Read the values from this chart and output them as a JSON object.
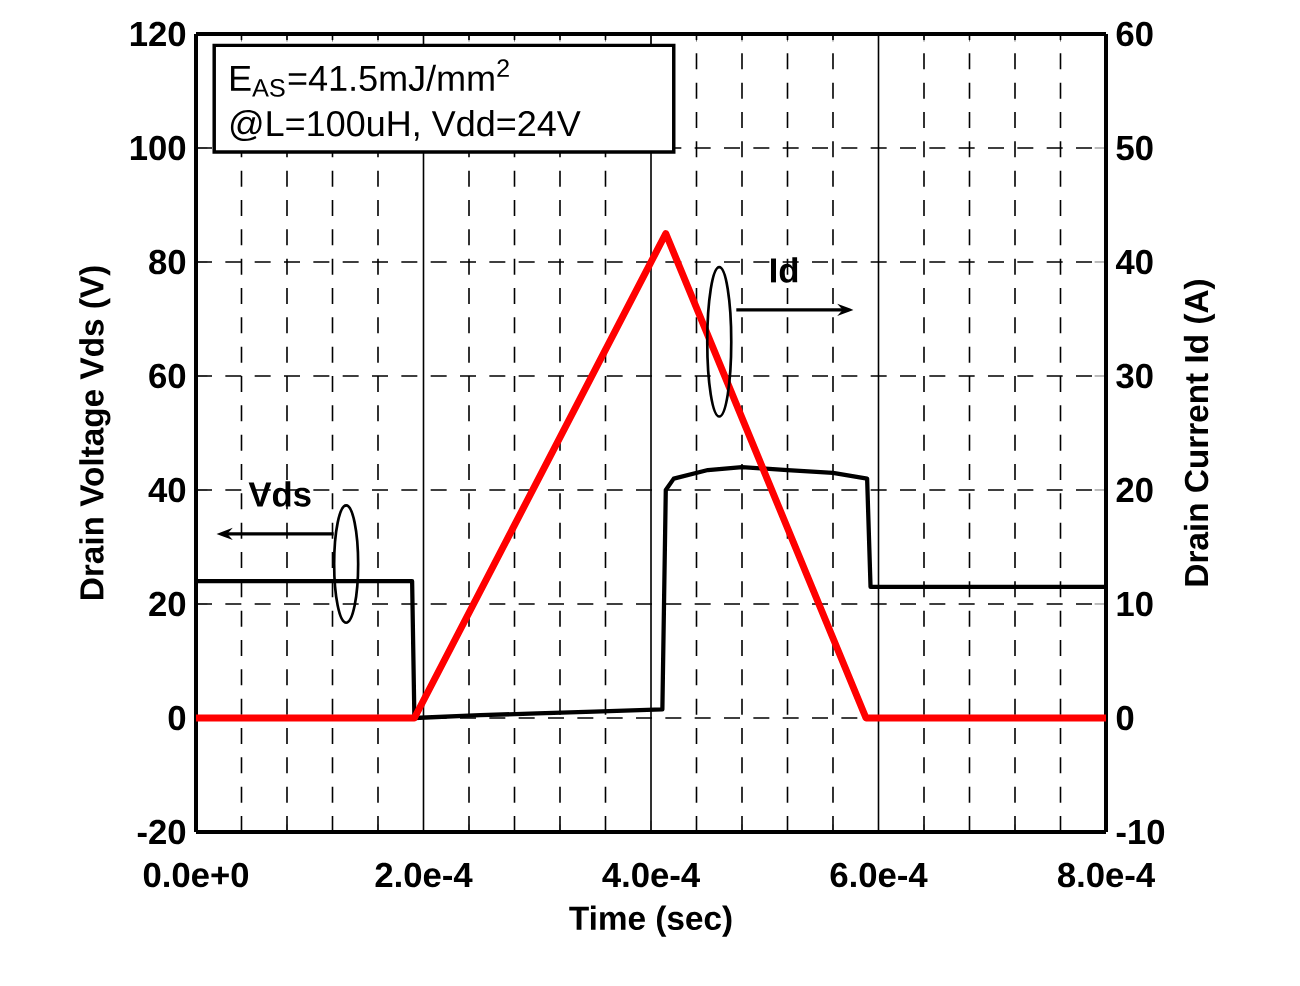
{
  "chart_data": {
    "type": "line",
    "xlabel": "Time (sec)",
    "ylabel": "Drain Voltage Vds (V)",
    "y2label": "Drain Current Id (A)",
    "xlim": [
      0,
      0.0008
    ],
    "xticks": [
      {
        "value": 0,
        "label": "0.0e+0"
      },
      {
        "value": 0.0002,
        "label": "2.0e-4"
      },
      {
        "value": 0.0004,
        "label": "4.0e-4"
      },
      {
        "value": 0.0006,
        "label": "6.0e-4"
      },
      {
        "value": 0.0008,
        "label": "8.0e-4"
      }
    ],
    "ylim": [
      -20,
      120
    ],
    "yticks": [
      -20,
      0,
      20,
      40,
      60,
      80,
      100,
      120
    ],
    "y2lim": [
      -10,
      60
    ],
    "y2ticks": [
      -10,
      0,
      10,
      20,
      30,
      40,
      50,
      60
    ],
    "grid": true,
    "series": [
      {
        "color": "#000000",
        "x": [
          0,
          5e-05,
          0.0001,
          0.00015,
          0.00019,
          0.000192,
          0.00025,
          0.0003,
          0.00035,
          0.00041,
          0.000413,
          0.00042,
          0.00045,
          0.00048,
          0.00052,
          0.00056,
          0.00059,
          0.000593,
          0.00065,
          0.0007,
          0.0008
        ],
        "values": [
          24,
          24,
          24,
          24,
          24,
          0,
          0.5,
          0.8,
          1.1,
          1.5,
          40,
          42,
          43.5,
          44,
          43.5,
          43,
          42,
          23,
          23,
          23,
          23
        ]
      },
      {
        "color": "#ff0000",
        "axis": "y2",
        "x": [
          0,
          0.000192,
          0.000413,
          0.000589,
          0.0008
        ],
        "values": [
          0,
          0,
          42.5,
          0,
          0
        ]
      }
    ],
    "annotations": [
      "E$_{AS}$=41.5mJ/mm$^{2}$",
      "@L=100uH, Vdd=24V",
      "Vds",
      "Id"
    ]
  }
}
